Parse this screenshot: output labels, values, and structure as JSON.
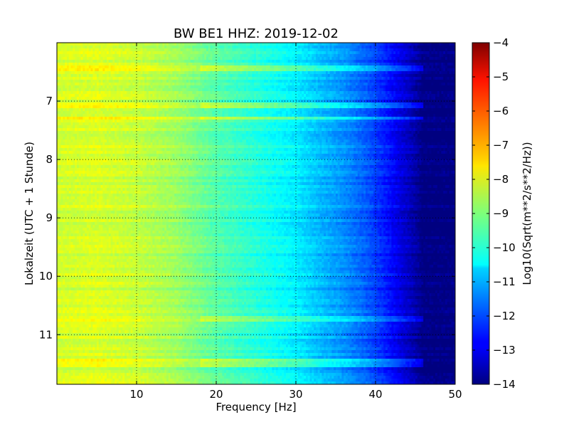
{
  "chart_data": {
    "type": "heatmap",
    "title": "BW BE1 HHZ: 2019-12-02",
    "xlabel": "Frequency [Hz]",
    "ylabel": "Lokalzeit (UTC + 1 Stunde)",
    "xlim": [
      0,
      50
    ],
    "ylim": [
      11.85,
      6.0
    ],
    "x_ticks": [
      10,
      20,
      30,
      40,
      50
    ],
    "y_ticks": [
      7,
      8,
      9,
      10,
      11
    ],
    "grid": true,
    "colormap": "jet",
    "colorbar": {
      "label": "Log10(Sqrt(m**2/s**2/Hz))",
      "range": [
        -14,
        -4
      ],
      "ticks": [
        -4,
        -5,
        -6,
        -7,
        -8,
        -9,
        -10,
        -11,
        -12,
        -13,
        -14
      ]
    },
    "psd_profile": [
      {
        "freq": 0,
        "value": -8.2
      },
      {
        "freq": 5,
        "value": -8.1
      },
      {
        "freq": 10,
        "value": -8.3
      },
      {
        "freq": 15,
        "value": -8.7
      },
      {
        "freq": 20,
        "value": -9.4
      },
      {
        "freq": 25,
        "value": -9.9
      },
      {
        "freq": 30,
        "value": -10.4
      },
      {
        "freq": 33,
        "value": -10.9
      },
      {
        "freq": 36,
        "value": -11.3
      },
      {
        "freq": 39,
        "value": -11.9
      },
      {
        "freq": 41,
        "value": -12.4
      },
      {
        "freq": 43,
        "value": -13.0
      },
      {
        "freq": 45,
        "value": -13.6
      },
      {
        "freq": 46,
        "value": -14.0
      },
      {
        "freq": 50,
        "value": -14.0
      }
    ],
    "bright_bands_hours": [
      6.45,
      7.08,
      7.3,
      10.73,
      11.43,
      11.52
    ]
  }
}
